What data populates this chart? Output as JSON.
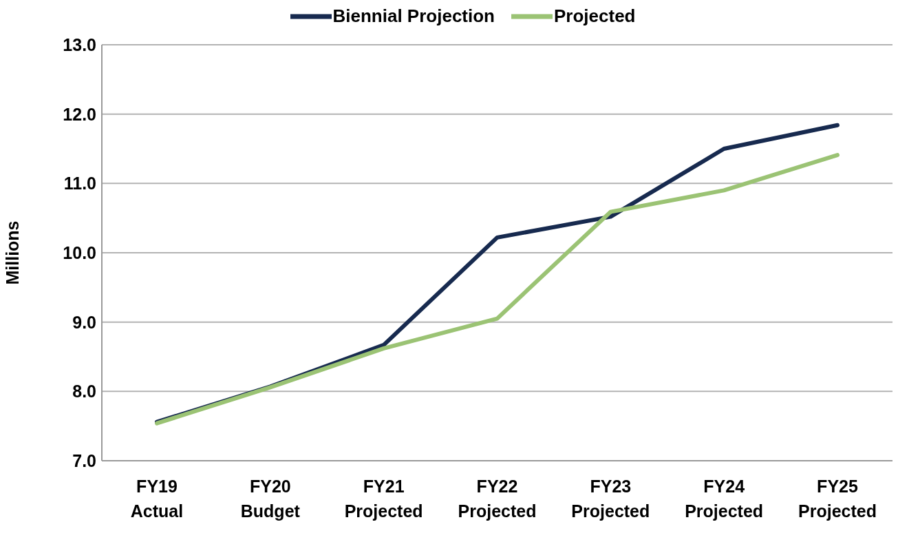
{
  "chart_data": {
    "type": "line",
    "ylabel": "Millions",
    "categories": [
      "FY19 Actual",
      "FY20 Budget",
      "FY21 Projected",
      "FY22 Projected",
      "FY23 Projected",
      "FY24 Projected",
      "FY25 Projected"
    ],
    "series": [
      {
        "name": "Biennial Projection",
        "color": "#172a4f",
        "values": [
          7.56,
          8.07,
          8.67,
          10.22,
          10.52,
          11.5,
          11.84
        ]
      },
      {
        "name": "Projected",
        "color": "#9bc374",
        "values": [
          7.54,
          8.06,
          8.62,
          9.05,
          10.59,
          10.9,
          11.41
        ]
      }
    ],
    "ylim": [
      7,
      13
    ],
    "yticks": [
      {
        "value": 7,
        "label": "7.0"
      },
      {
        "value": 8,
        "label": "8.0"
      },
      {
        "value": 9,
        "label": "9.0"
      },
      {
        "value": 10,
        "label": "10.0"
      },
      {
        "value": 11,
        "label": "11.0"
      },
      {
        "value": 12,
        "label": "12.0"
      },
      {
        "value": 13,
        "label": "13.0"
      }
    ],
    "grid": "y",
    "legend": "top",
    "marker": "none",
    "line_style": "solid"
  }
}
